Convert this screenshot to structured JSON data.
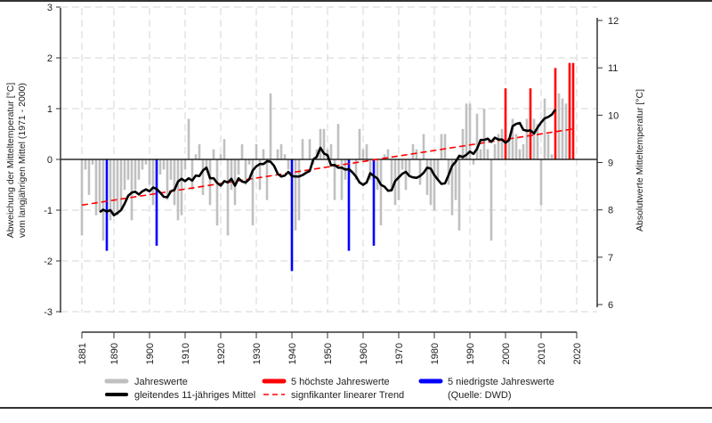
{
  "chart_data": {
    "type": "bar",
    "title": "",
    "ylabel_line1": "Abweichung der Mitteltemperatur [°C]",
    "ylabel_line2": "vom langjährigen Mittel (1971 - 2000)",
    "y2label": "Absolutwerte Mitteltemperatur [°C]",
    "ylim": [
      -3,
      3
    ],
    "y2lim": [
      6,
      12
    ],
    "yticks": [
      "3",
      "2",
      "1",
      "0",
      "-1",
      "-2",
      "-3"
    ],
    "y2ticks": [
      "12",
      "11",
      "10",
      "9",
      "8",
      "7",
      "6"
    ],
    "xticks": [
      "1881",
      "1890",
      "1900",
      "1910",
      "1920",
      "1930",
      "1940",
      "1950",
      "1960",
      "1970",
      "1980",
      "1990",
      "2000",
      "2010",
      "2020"
    ],
    "grid": true,
    "start_year": 1881,
    "values": [
      -1.5,
      -0.2,
      -0.7,
      -0.1,
      -1.1,
      -1.0,
      -1.6,
      -1.8,
      -1.2,
      -1.1,
      -1.1,
      -1.0,
      -0.6,
      -0.4,
      -1.2,
      -0.6,
      -0.4,
      -0.2,
      -0.1,
      -0.5,
      -0.9,
      -1.7,
      -0.3,
      -0.2,
      -0.8,
      -0.4,
      -0.9,
      -1.2,
      -1.1,
      -0.2,
      0.8,
      -0.6,
      0.1,
      0.3,
      -0.7,
      -0.2,
      -0.9,
      0.2,
      -1.3,
      0.1,
      0.4,
      -1.5,
      -0.6,
      -0.9,
      -0.3,
      0.3,
      -0.5,
      -0.1,
      -1.3,
      0.3,
      -0.6,
      0.2,
      -0.8,
      1.3,
      0.0,
      0.2,
      0.3,
      0.1,
      -0.2,
      -2.2,
      -1.4,
      -1.2,
      0.4,
      0.0,
      0.4,
      -0.1,
      0.2,
      0.6,
      0.6,
      0.2,
      0.3,
      -0.8,
      0.7,
      -0.8,
      -0.4,
      -1.8,
      0.0,
      -0.4,
      0.6,
      0.2,
      0.3,
      -0.4,
      -1.7,
      -0.6,
      -1.3,
      0.1,
      0.2,
      -0.6,
      -0.9,
      -0.8,
      -0.2,
      -0.6,
      -0.3,
      0.3,
      0.2,
      -0.5,
      0.5,
      -0.7,
      -0.9,
      -1.0,
      -0.4,
      0.5,
      0.5,
      -0.5,
      -1.1,
      -0.8,
      -1.4,
      0.6,
      1.1,
      1.1,
      -0.1,
      0.9,
      0.2,
      1.0,
      0.2,
      -1.6,
      0.3,
      0.5,
      0.6,
      1.4,
      0.4,
      0.8,
      0.5,
      0.2,
      0.3,
      0.8,
      1.4,
      0.8,
      0.7,
      -0.9,
      1.2,
      0.5,
      0.1,
      1.8,
      1.3,
      1.2,
      1.1,
      1.9,
      1.9
    ],
    "highest_years": [
      2000,
      2007,
      2014,
      2018,
      2019
    ],
    "lowest_years": [
      1888,
      1902,
      1940,
      1956,
      1963
    ],
    "moving_average_window": 11,
    "trend": {
      "start_year": 1881,
      "start_value": -0.9,
      "end_year": 2019,
      "end_value": 0.6
    },
    "colors": {
      "bars": "#c0c0c0",
      "highest": "#ff0000",
      "lowest": "#0000ff",
      "mean": "#000000",
      "trend": "#ff0000"
    },
    "legend": {
      "placement": "bottom",
      "annual": "Jahreswerte",
      "mean": "gleitendes 11-jähriges Mittel",
      "highest": "5 höchste Jahreswerte",
      "trend": "signfikanter linearer Trend",
      "lowest": "5 niedrigste Jahreswerte",
      "source": "(Quelle: DWD)"
    }
  }
}
